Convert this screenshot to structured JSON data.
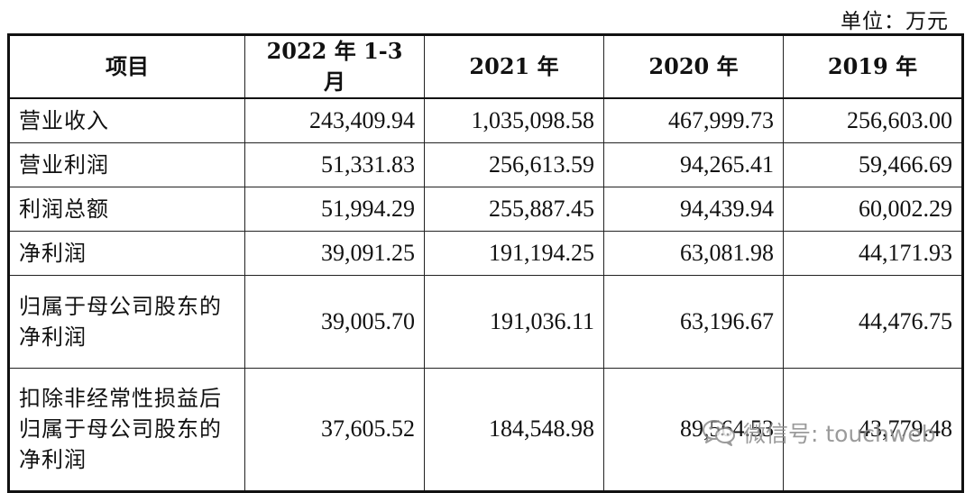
{
  "unit_label": "单位：万元",
  "table": {
    "headers": [
      "项目",
      "2022 年 1-3 月",
      "2021 年",
      "2020 年",
      "2019 年"
    ],
    "rows": [
      {
        "label": "营业收入",
        "values": [
          "243,409.94",
          "1,035,098.58",
          "467,999.73",
          "256,603.00"
        ]
      },
      {
        "label": "营业利润",
        "values": [
          "51,331.83",
          "256,613.59",
          "94,265.41",
          "59,466.69"
        ]
      },
      {
        "label": "利润总额",
        "values": [
          "51,994.29",
          "255,887.45",
          "94,439.94",
          "60,002.29"
        ]
      },
      {
        "label": "净利润",
        "values": [
          "39,091.25",
          "191,194.25",
          "63,081.98",
          "44,171.93"
        ]
      },
      {
        "label": "归属于母公司股东的净利润",
        "values": [
          "39,005.70",
          "191,036.11",
          "63,196.67",
          "44,476.75"
        ]
      },
      {
        "label": "扣除非经常性损益后归属于母公司股东的净利润",
        "values": [
          "37,605.52",
          "184,548.98",
          "89,564.53",
          "43,779.48"
        ]
      }
    ]
  },
  "watermark": {
    "icon": "wechat-icon",
    "text": "微信号: touchweb"
  }
}
